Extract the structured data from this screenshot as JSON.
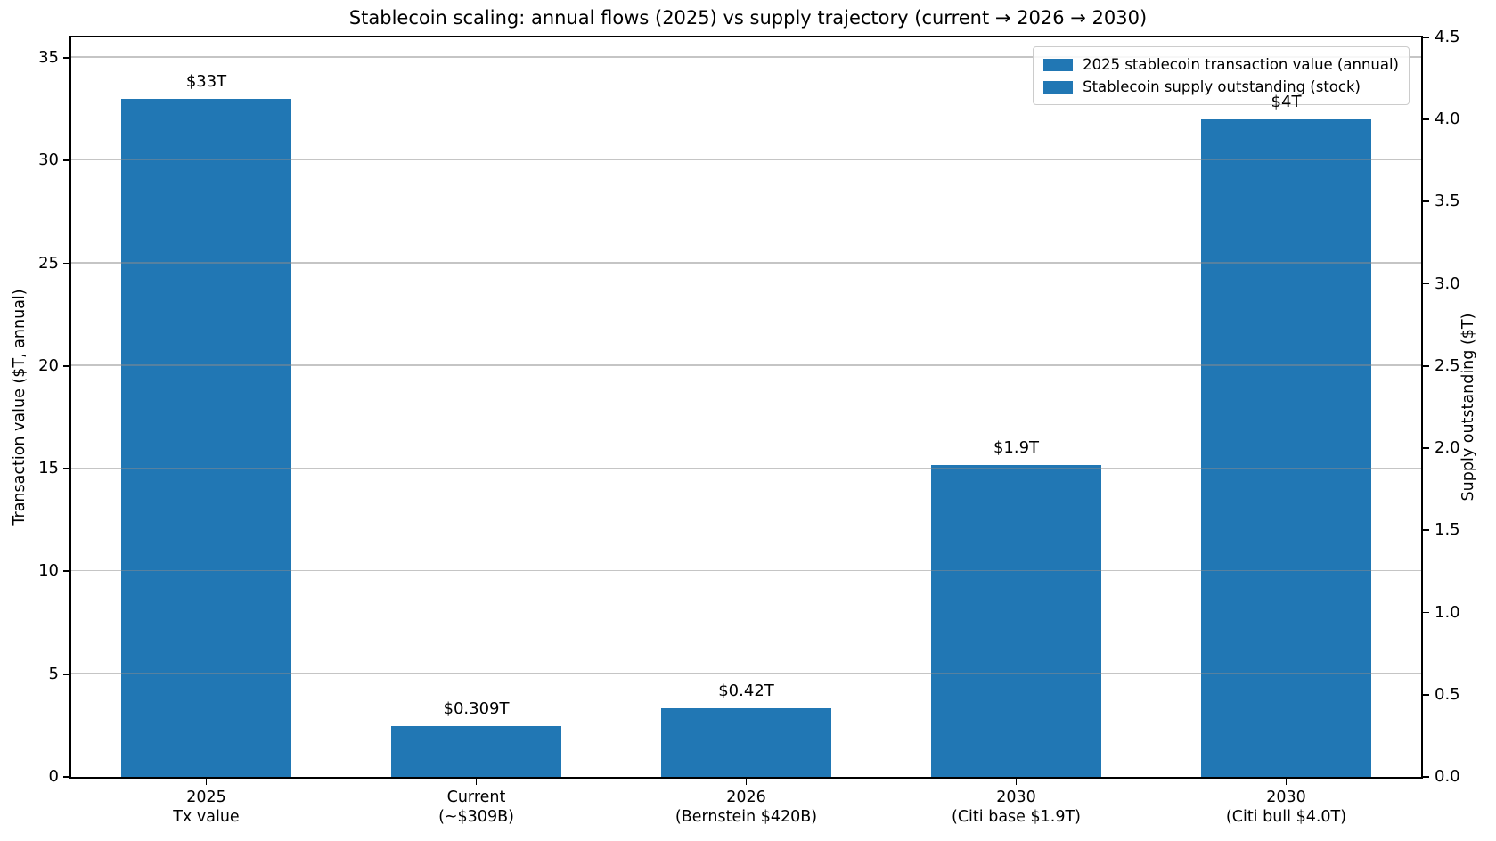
{
  "title": "Stablecoin scaling: annual flows (2025) vs supply trajectory (current → 2026 → 2030)",
  "chart_data": {
    "type": "bar",
    "title": "Stablecoin scaling: annual flows (2025) vs supply trajectory (current → 2026 → 2030)",
    "grid": true,
    "background": "#ffffff",
    "bar_color": "#2177b4",
    "grid_color": "rgba(140,140,140,0.5)",
    "left_axis": {
      "label": "Transaction value ($T, annual)",
      "lim": [
        0,
        36
      ],
      "ticks": [
        {
          "value": 0,
          "label": "0"
        },
        {
          "value": 5,
          "label": "5"
        },
        {
          "value": 10,
          "label": "10"
        },
        {
          "value": 15,
          "label": "15"
        },
        {
          "value": 20,
          "label": "20"
        },
        {
          "value": 25,
          "label": "25"
        },
        {
          "value": 30,
          "label": "30"
        },
        {
          "value": 35,
          "label": "35"
        }
      ]
    },
    "right_axis": {
      "label": "Supply outstanding ($T)",
      "lim": [
        0,
        4.5
      ],
      "ticks": [
        {
          "value": 0,
          "label": "0.0"
        },
        {
          "value": 0.5,
          "label": "0.5"
        },
        {
          "value": 1,
          "label": "1.0"
        },
        {
          "value": 1.5,
          "label": "1.5"
        },
        {
          "value": 2,
          "label": "2.0"
        },
        {
          "value": 2.5,
          "label": "2.5"
        },
        {
          "value": 3,
          "label": "3.0"
        },
        {
          "value": 3.5,
          "label": "3.5"
        },
        {
          "value": 4,
          "label": "4.0"
        },
        {
          "value": 4.5,
          "label": "4.5"
        }
      ]
    },
    "categories": [
      {
        "line1": "2025",
        "line2": "Tx value"
      },
      {
        "line1": "Current",
        "line2": "(~$309B)"
      },
      {
        "line1": "2026",
        "line2": "(Bernstein $420B)"
      },
      {
        "line1": "2030",
        "line2": "(Citi base $1.9T)"
      },
      {
        "line1": "2030",
        "line2": "(Citi bull $4.0T)"
      }
    ],
    "bars": [
      {
        "category_index": 0,
        "axis": "left",
        "value": 33,
        "label": "$33T",
        "series": "2025 stablecoin transaction value (annual)"
      },
      {
        "category_index": 1,
        "axis": "right",
        "value": 0.309,
        "label": "$0.309T",
        "series": "Stablecoin supply outstanding (stock)"
      },
      {
        "category_index": 2,
        "axis": "right",
        "value": 0.42,
        "label": "$0.42T",
        "series": "Stablecoin supply outstanding (stock)"
      },
      {
        "category_index": 3,
        "axis": "right",
        "value": 1.9,
        "label": "$1.9T",
        "series": "Stablecoin supply outstanding (stock)"
      },
      {
        "category_index": 4,
        "axis": "right",
        "value": 4.0,
        "label": "$4T",
        "series": "Stablecoin supply outstanding (stock)"
      }
    ],
    "legend": {
      "position": "upper right",
      "entries": [
        {
          "label": "2025 stablecoin transaction value (annual)",
          "color": "#2177b4"
        },
        {
          "label": "Stablecoin supply outstanding (stock)",
          "color": "#2177b4"
        }
      ]
    }
  }
}
